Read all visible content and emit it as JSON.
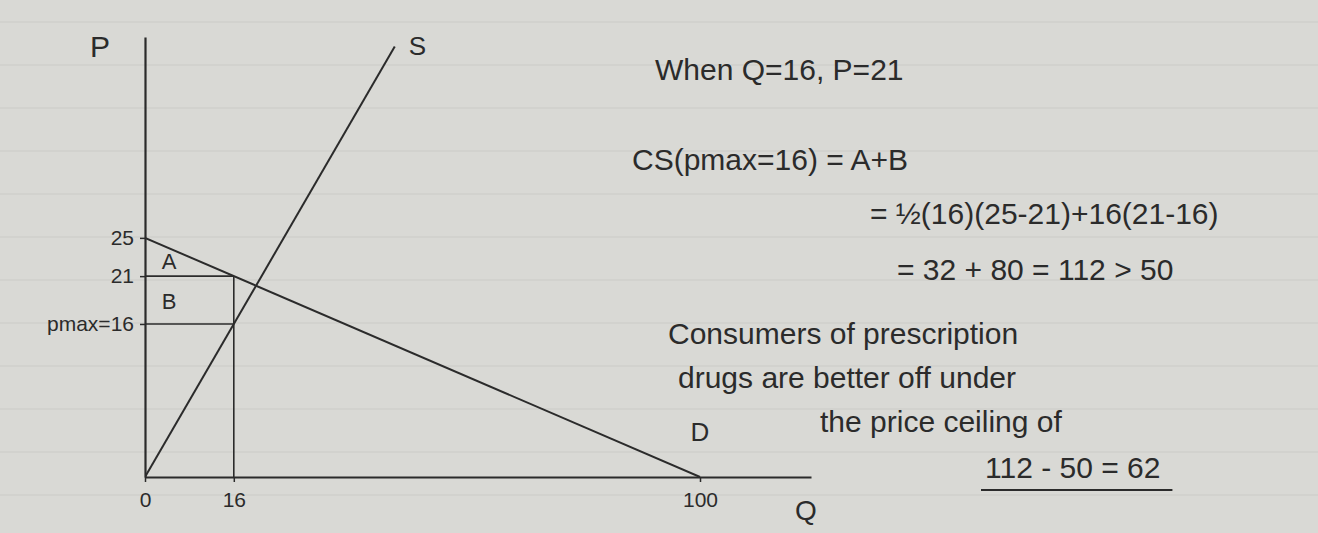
{
  "chart_data": {
    "type": "line",
    "x_label": "Q",
    "y_label": "P",
    "xlim": [
      0,
      120
    ],
    "ylim": [
      0,
      46
    ],
    "xticks": [
      0,
      16,
      100
    ],
    "yticks": [
      {
        "value": 16,
        "label": "pmax=16"
      },
      21,
      25
    ],
    "series": [
      {
        "name": "S",
        "color": "#2b2b2b",
        "x": [
          0,
          45
        ],
        "values": [
          0,
          45
        ]
      },
      {
        "name": "D",
        "color": "#2b2b2b",
        "x": [
          0,
          100
        ],
        "values": [
          25,
          0
        ]
      }
    ],
    "guides": [
      {
        "x": [
          0,
          16
        ],
        "values": [
          21,
          21
        ]
      },
      {
        "x": [
          0,
          16
        ],
        "values": [
          16,
          16
        ]
      },
      {
        "x": [
          16,
          16
        ],
        "values": [
          0,
          21
        ]
      }
    ],
    "regions": [
      {
        "label": "A",
        "x": 3,
        "y": 22.6
      },
      {
        "label": "B",
        "x": 3,
        "y": 18.4
      }
    ],
    "annotations": [
      "When Q=16, P=21",
      "CS(pmax=16) = A+B",
      "= ½(16)(25-21)+16(21-16)",
      "= 32 + 80 = 112 > 50",
      "Consumers of prescription",
      "drugs are better off under",
      "the price ceiling of",
      "112 - 50 = 62"
    ]
  }
}
